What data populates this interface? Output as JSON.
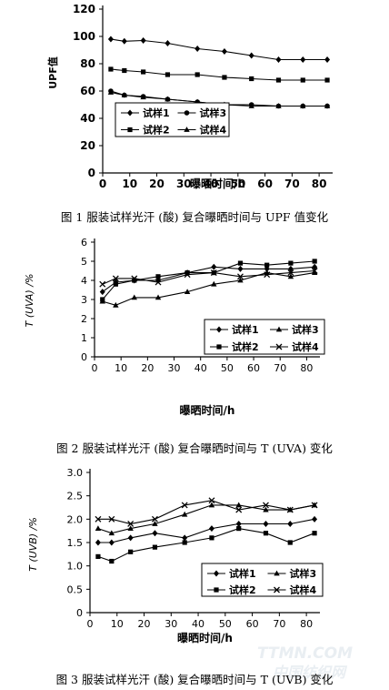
{
  "watermark": {
    "line1": "TTMN.COM",
    "line2": "中国纺织网"
  },
  "chart_data": [
    {
      "type": "line",
      "title": "",
      "caption": "图 1   服装试样光汗 (酸) 复合曝晒时间与 UPF 值变化",
      "xlabel": "曝晒时间/h",
      "ylabel": "UPF值",
      "xlim": [
        0,
        85
      ],
      "ylim": [
        0,
        120
      ],
      "xticks": [
        0,
        10,
        20,
        30,
        40,
        50,
        60,
        70,
        80
      ],
      "yticks": [
        0,
        20,
        40,
        60,
        80,
        100,
        120
      ],
      "ytick_labels": [
        "0",
        "20",
        "40",
        "60",
        "80",
        "100",
        "120"
      ],
      "grid": false,
      "legend_position": "bottom-left",
      "legend_columns": 2,
      "x": [
        3,
        8,
        15,
        24,
        35,
        45,
        55,
        65,
        74,
        83
      ],
      "series": [
        {
          "name": "试样1",
          "marker": "diamond",
          "values": [
            98,
            96.5,
            97,
            95,
            91,
            89,
            86,
            83,
            83,
            83
          ]
        },
        {
          "name": "试样2",
          "marker": "square",
          "values": [
            76,
            75,
            74,
            72,
            72,
            70,
            69,
            68,
            68,
            68
          ]
        },
        {
          "name": "试样3",
          "marker": "circle",
          "values": [
            60,
            57,
            56,
            54,
            52,
            50,
            50,
            49,
            49,
            49
          ]
        },
        {
          "name": "试样4",
          "marker": "triangle",
          "values": [
            59,
            57,
            55.5,
            54,
            52,
            50,
            49,
            49,
            49,
            49
          ]
        }
      ]
    },
    {
      "type": "line",
      "title": "",
      "caption": "图 2   服装试样光汗 (酸) 复合曝晒时间与 T (UVA) 变化",
      "xlabel": "曝晒时间/h",
      "ylabel": "T (UVA) /%",
      "xlim": [
        0,
        85
      ],
      "ylim": [
        0,
        6
      ],
      "xticks": [
        0,
        10,
        20,
        30,
        40,
        50,
        60,
        70,
        80
      ],
      "yticks": [
        0,
        1,
        2,
        3,
        4,
        5,
        6
      ],
      "ytick_labels": [
        "0",
        "1",
        "2",
        "3",
        "4",
        "5",
        "6"
      ],
      "grid": false,
      "legend_position": "middle-right",
      "legend_columns": 2,
      "x": [
        3,
        8,
        15,
        24,
        35,
        45,
        55,
        65,
        74,
        83
      ],
      "series": [
        {
          "name": "试样1",
          "marker": "diamond",
          "values": [
            3.4,
            3.9,
            4.0,
            4.0,
            4.4,
            4.7,
            4.6,
            4.6,
            4.6,
            4.7
          ]
        },
        {
          "name": "试样2",
          "marker": "square",
          "values": [
            3.0,
            3.8,
            4.0,
            4.2,
            4.4,
            4.4,
            4.9,
            4.8,
            4.9,
            5.0
          ]
        },
        {
          "name": "试样3",
          "marker": "triangle",
          "values": [
            2.9,
            2.7,
            3.1,
            3.1,
            3.4,
            3.8,
            4.0,
            4.4,
            4.2,
            4.4
          ]
        },
        {
          "name": "试样4",
          "marker": "x",
          "values": [
            3.8,
            4.1,
            4.1,
            3.9,
            4.3,
            4.4,
            4.2,
            4.3,
            4.4,
            4.5
          ]
        }
      ]
    },
    {
      "type": "line",
      "title": "",
      "caption": "图 3   服装试样光汗 (酸) 复合曝晒时间与 T (UVB) 变化",
      "xlabel": "曝晒时间/h",
      "ylabel": "T (UVB) /%",
      "xlim": [
        0,
        85
      ],
      "ylim": [
        0,
        3
      ],
      "xticks": [
        0,
        10,
        20,
        30,
        40,
        50,
        60,
        70,
        80
      ],
      "yticks": [
        0,
        0.5,
        1.0,
        1.5,
        2.0,
        2.5,
        3.0
      ],
      "ytick_labels": [
        "0",
        "0.5",
        "1.0",
        "1.5",
        "2.0",
        "2.5",
        "3.0"
      ],
      "grid": false,
      "legend_position": "bottom-right",
      "legend_columns": 2,
      "x": [
        3,
        8,
        15,
        24,
        35,
        45,
        55,
        65,
        74,
        83
      ],
      "series": [
        {
          "name": "试样1",
          "marker": "diamond",
          "values": [
            1.5,
            1.5,
            1.6,
            1.7,
            1.6,
            1.8,
            1.9,
            1.9,
            1.9,
            2.0
          ]
        },
        {
          "name": "试样2",
          "marker": "square",
          "values": [
            1.2,
            1.1,
            1.3,
            1.4,
            1.5,
            1.6,
            1.8,
            1.7,
            1.5,
            1.7
          ]
        },
        {
          "name": "试样3",
          "marker": "triangle",
          "values": [
            1.8,
            1.7,
            1.8,
            1.9,
            2.1,
            2.3,
            2.3,
            2.2,
            2.2,
            2.3
          ]
        },
        {
          "name": "试样4",
          "marker": "x",
          "values": [
            2.0,
            2.0,
            1.9,
            2.0,
            2.3,
            2.4,
            2.2,
            2.3,
            2.2,
            2.3
          ]
        }
      ]
    }
  ]
}
